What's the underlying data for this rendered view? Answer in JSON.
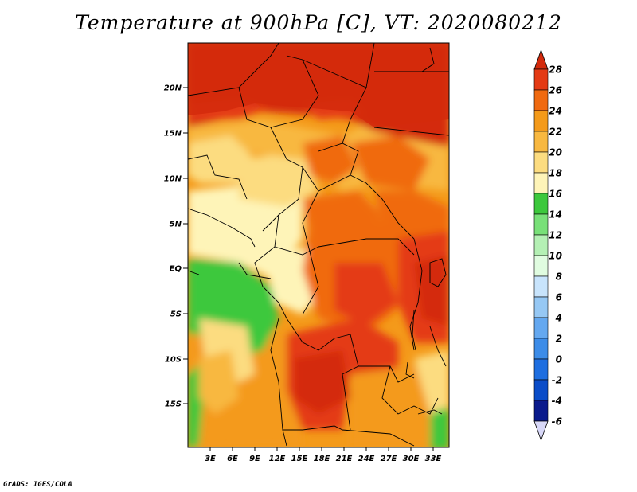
{
  "title": "Temperature at 900hPa [C], VT: 2020080212",
  "credit": "GrADS: IGES/COLA",
  "map": {
    "lat_labels": [
      "20N",
      "15N",
      "10N",
      "5N",
      "EQ",
      "5S",
      "10S",
      "15S"
    ],
    "lon_labels": [
      "3E",
      "6E",
      "9E",
      "12E",
      "15E",
      "18E",
      "21E",
      "24E",
      "27E",
      "30E",
      "33E"
    ]
  },
  "legend": {
    "labels": [
      "28",
      "26",
      "24",
      "22",
      "20",
      "18",
      "16",
      "14",
      "12",
      "10",
      "8",
      "6",
      "4",
      "2",
      "0",
      "-2",
      "-4",
      "-6"
    ],
    "colors": {
      "gt28": "#d42a0c",
      "26_28": "#e43a14",
      "24_26": "#f06a10",
      "22_24": "#f49a1a",
      "20_22": "#f8b840",
      "18_20": "#fcdc80",
      "16_18": "#fef4b8",
      "14_16": "#3cc83c",
      "12_14": "#78e078",
      "10_12": "#b4f0b4",
      "8_10": "#e0fce0",
      "6_8": "#c8e4fc",
      "4_6": "#96c8f4",
      "2_4": "#64a8f0",
      "0_2": "#3c8ce8",
      "neg2_0": "#1e6ee0",
      "neg4_neg2": "#0a4cc8",
      "neg6_neg4": "#0a1a8c",
      "lt_neg6": "#d8d8f8"
    }
  }
}
